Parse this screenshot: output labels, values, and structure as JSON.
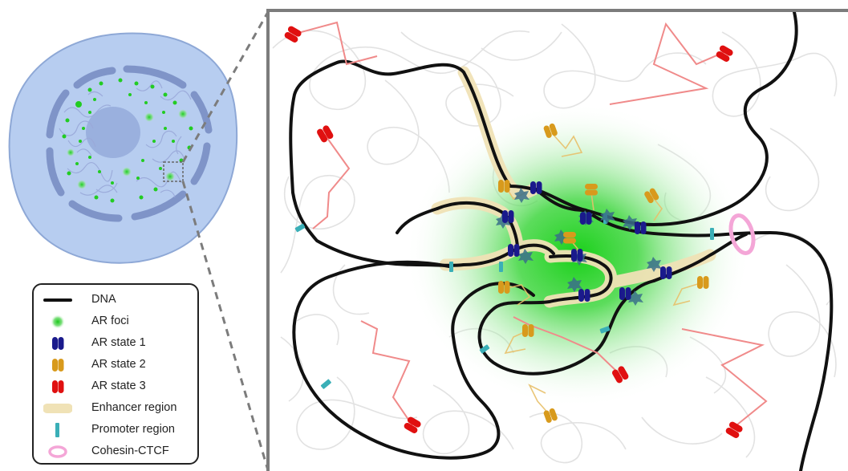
{
  "legend": {
    "items": [
      {
        "key": "dna",
        "label": "DNA"
      },
      {
        "key": "ar_foci",
        "label": "AR foci"
      },
      {
        "key": "ar_state_1",
        "label": "AR state 1"
      },
      {
        "key": "ar_state_2",
        "label": "AR state 2"
      },
      {
        "key": "ar_state_3",
        "label": "AR state 3"
      },
      {
        "key": "enhancer",
        "label": "Enhancer region"
      },
      {
        "key": "promoter",
        "label": "Promoter region"
      },
      {
        "key": "cohesin",
        "label": "Cohesin-CTCF"
      }
    ]
  },
  "colors": {
    "dna": "#111111",
    "ar_foci": "#22cc22",
    "ar_state_1": "#1a1a8c",
    "ar_state_2": "#d89a1c",
    "ar_state_3": "#e01010",
    "enhancer": "#f0e2b6",
    "promoter": "#3aafb7",
    "cohesin": "#f4a6d7",
    "cell": "#b7cdf0",
    "nucleolus": "#9ab0de",
    "frame": "#7c7c7c"
  }
}
